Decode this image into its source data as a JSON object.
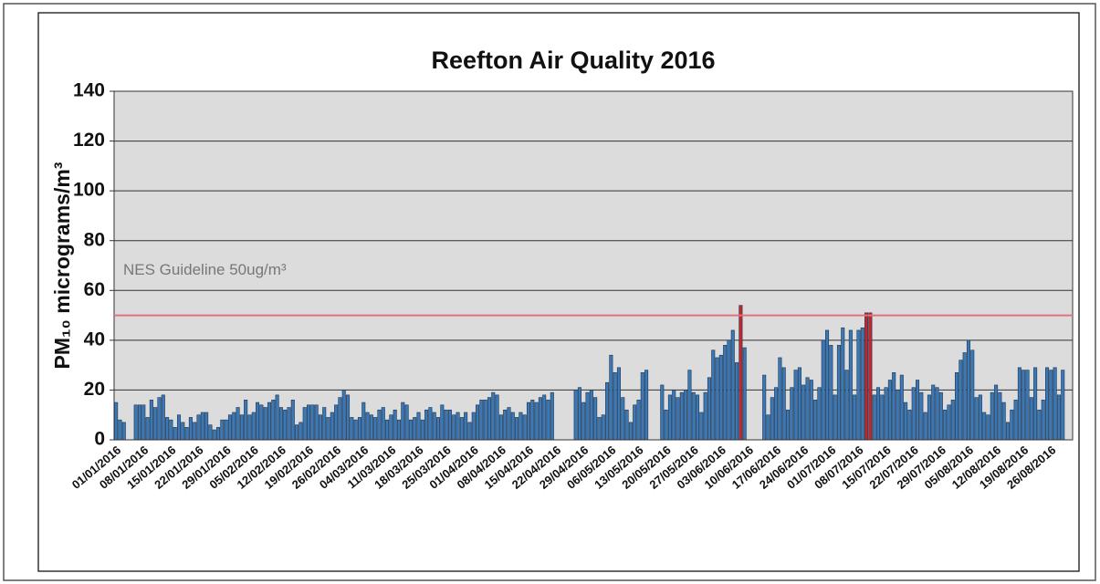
{
  "chart_data": {
    "type": "bar",
    "title": "Reefton Air Quality 2016",
    "y_label": "PM₁₀ micrograms/m³",
    "categories": [
      "01/01/2016",
      null,
      null,
      null,
      null,
      null,
      null,
      "08/01/2016",
      null,
      null,
      null,
      null,
      null,
      null,
      "15/01/2016",
      null,
      null,
      null,
      null,
      null,
      null,
      "22/01/2016",
      null,
      null,
      null,
      null,
      null,
      null,
      "29/01/2016",
      null,
      null,
      null,
      null,
      null,
      null,
      "05/02/2016",
      null,
      null,
      null,
      null,
      null,
      null,
      "12/02/2016",
      null,
      null,
      null,
      null,
      null,
      null,
      "19/02/2016",
      null,
      null,
      null,
      null,
      null,
      null,
      "26/02/2016",
      null,
      null,
      null,
      null,
      null,
      null,
      "04/03/2016",
      null,
      null,
      null,
      null,
      null,
      null,
      "11/03/2016",
      null,
      null,
      null,
      null,
      null,
      null,
      "18/03/2016",
      null,
      null,
      null,
      null,
      null,
      null,
      "25/03/2016",
      null,
      null,
      null,
      null,
      null,
      null,
      "01/04/2016",
      null,
      null,
      null,
      null,
      null,
      null,
      "08/04/2016",
      null,
      null,
      null,
      null,
      null,
      null,
      "15/04/2016",
      null,
      null,
      null,
      null,
      null,
      null,
      "22/04/2016",
      null,
      null,
      null,
      null,
      null,
      null,
      "29/04/2016",
      null,
      null,
      null,
      null,
      null,
      null,
      "06/05/2016",
      null,
      null,
      null,
      null,
      null,
      null,
      "13/05/2016",
      null,
      null,
      null,
      null,
      null,
      null,
      "20/05/2016",
      null,
      null,
      null,
      null,
      null,
      null,
      "27/05/2016",
      null,
      null,
      null,
      null,
      null,
      null,
      "03/06/2016",
      null,
      null,
      null,
      null,
      null,
      null,
      "10/06/2016",
      null,
      null,
      null,
      null,
      null,
      null,
      "17/06/2016",
      null,
      null,
      null,
      null,
      null,
      null,
      "24/06/2016",
      null,
      null,
      null,
      null,
      null,
      null,
      "01/07/2016",
      null,
      null,
      null,
      null,
      null,
      null,
      "08/07/2016",
      null,
      null,
      null,
      null,
      null,
      null,
      "15/07/2016",
      null,
      null,
      null,
      null,
      null,
      null,
      "22/07/2016",
      null,
      null,
      null,
      null,
      null,
      null,
      "29/07/2016",
      null,
      null,
      null,
      null,
      null,
      null,
      "05/08/2016",
      null,
      null,
      null,
      null,
      null,
      null,
      "12/08/2016",
      null,
      null,
      null,
      null,
      null,
      null,
      "19/08/2016",
      null,
      null,
      null,
      null,
      null,
      null,
      "26/08/2016",
      null,
      null,
      null,
      null,
      null
    ],
    "values": [
      15,
      8,
      7,
      null,
      null,
      14,
      14,
      14,
      9,
      16,
      13,
      17,
      18,
      9,
      8,
      5,
      10,
      7,
      5,
      9,
      7,
      10,
      11,
      11,
      6,
      4,
      5,
      8,
      8,
      10,
      11,
      13,
      10,
      16,
      10,
      11,
      15,
      14,
      13,
      15,
      16,
      18,
      13,
      12,
      13,
      16,
      6,
      7,
      13,
      14,
      14,
      14,
      10,
      13,
      9,
      11,
      14,
      17,
      20,
      18,
      9,
      8,
      9,
      15,
      11,
      10,
      9,
      12,
      13,
      8,
      10,
      12,
      8,
      15,
      14,
      8,
      9,
      11,
      8,
      12,
      13,
      11,
      9,
      14,
      12,
      12,
      10,
      11,
      9,
      11,
      7,
      11,
      14,
      16,
      16,
      17,
      19,
      18,
      10,
      12,
      13,
      11,
      9,
      11,
      10,
      15,
      16,
      15,
      17,
      18,
      16,
      19,
      null,
      null,
      null,
      null,
      null,
      20,
      21,
      15,
      19,
      20,
      17,
      9,
      10,
      23,
      34,
      27,
      29,
      17,
      12,
      7,
      14,
      16,
      27,
      28,
      null,
      null,
      null,
      22,
      12,
      18,
      20,
      17,
      19,
      20,
      28,
      19,
      18,
      11,
      19,
      25,
      36,
      33,
      34,
      38,
      40,
      44,
      31,
      54,
      37,
      null,
      null,
      null,
      null,
      26,
      10,
      17,
      21,
      33,
      29,
      12,
      21,
      28,
      29,
      22,
      25,
      24,
      16,
      21,
      40,
      44,
      38,
      18,
      38,
      45,
      28,
      44,
      18,
      44,
      45,
      51,
      51,
      18,
      21,
      18,
      21,
      24,
      27,
      20,
      26,
      15,
      12,
      21,
      24,
      19,
      11,
      18,
      22,
      21,
      19,
      12,
      14,
      16,
      27,
      32,
      35,
      40,
      36,
      17,
      18,
      11,
      10,
      19,
      22,
      19,
      15,
      7,
      12,
      16,
      29,
      28,
      28,
      17,
      29,
      12,
      16,
      29,
      28,
      29,
      18,
      28,
      null,
      null
    ],
    "color": "#3b78b5",
    "highlight_color": "#c0282d",
    "threshold": 50,
    "threshold_label": "NES Guideline 50ug/m³",
    "threshold_color": "#e3707e",
    "ylim": [
      0,
      140
    ],
    "yticks": [
      0,
      20,
      40,
      60,
      80,
      100,
      120,
      140
    ],
    "grid": true
  }
}
